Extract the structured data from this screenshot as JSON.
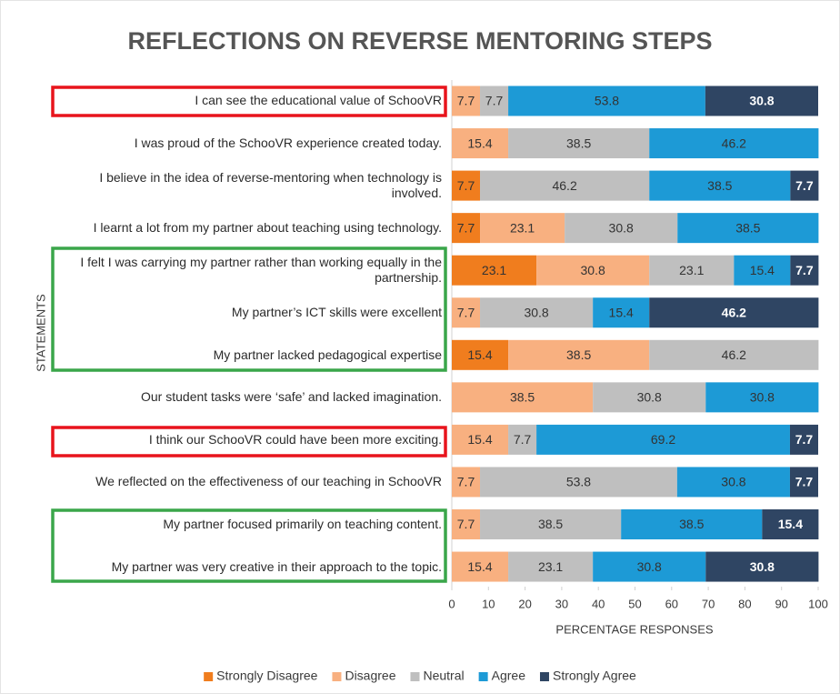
{
  "chart_data": {
    "type": "stacked-barh",
    "title": "REFLECTIONS ON REVERSE MENTORING STEPS",
    "y_label": "STATEMENTS",
    "x_label": "PERCENTAGE RESPONSES",
    "categories": [
      "I can see the educational value of SchooVR",
      "I was proud of the SchooVR experience created today.",
      "I believe in the idea of reverse-mentoring when technology is involved.",
      "I learnt a lot from my partner about teaching using technology.",
      "I felt I was carrying my partner rather than working equally in the partnership.",
      "My partner’s ICT skills were excellent",
      "My partner lacked pedagogical expertise",
      "Our student tasks were ‘safe’ and lacked imagination.",
      "I think our SchooVR could have been more exciting.",
      "We reflected on the effectiveness of our teaching in SchooVR",
      "My partner focused primarily on teaching content.",
      "My partner was very creative in their approach to the topic."
    ],
    "series": [
      {
        "name": "Strongly Disagree",
        "color": "#f07d1e",
        "values": [
          null,
          null,
          7.7,
          7.7,
          23.1,
          null,
          15.4,
          null,
          null,
          null,
          null,
          null
        ]
      },
      {
        "name": "Disagree",
        "color": "#f8b080",
        "values": [
          7.7,
          15.4,
          null,
          23.1,
          30.8,
          7.7,
          38.5,
          38.5,
          15.4,
          7.7,
          7.7,
          15.4
        ]
      },
      {
        "name": "Neutral",
        "color": "#bfbfbf",
        "values": [
          7.7,
          38.5,
          46.2,
          30.8,
          23.1,
          30.8,
          46.2,
          30.8,
          7.7,
          53.8,
          38.5,
          23.1
        ]
      },
      {
        "name": "Agree",
        "color": "#1d9ad6",
        "values": [
          53.8,
          46.2,
          38.5,
          38.5,
          15.4,
          15.4,
          null,
          30.8,
          69.2,
          30.8,
          38.5,
          30.8
        ]
      },
      {
        "name": "Strongly Agree",
        "color": "#2f4563",
        "values": [
          30.8,
          null,
          7.7,
          null,
          7.7,
          46.2,
          null,
          null,
          7.7,
          7.7,
          15.4,
          30.8
        ]
      }
    ],
    "xlim": [
      0,
      100
    ],
    "xticks": [
      0,
      10,
      20,
      30,
      40,
      50,
      60,
      70,
      80,
      90,
      100
    ],
    "legend": "bottom"
  }
}
